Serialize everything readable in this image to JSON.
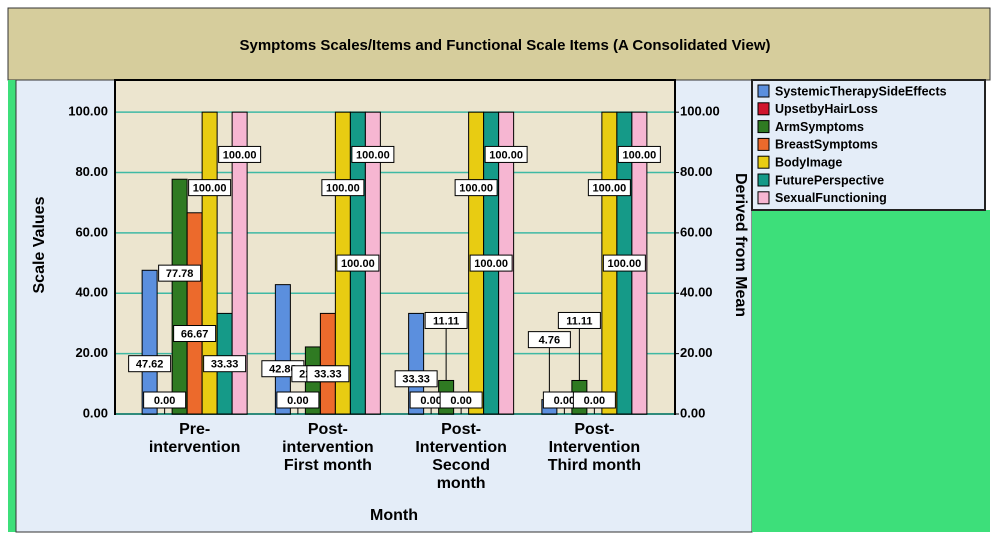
{
  "chart_data": {
    "type": "bar",
    "title": "Symptoms Scales/Items and Functional Scale Items (A Consolidated View)",
    "x_label": "Month",
    "y_label": "Scale Values",
    "y2_label": "Derived from Mean",
    "categories": [
      "Pre-\nintervention",
      "Post-\nintervention\nFirst month",
      "Post-\nIntervention\nSecond\nmonth",
      "Post-\nIntervention\nThird month"
    ],
    "series": [
      {
        "name": "SystemicTherapySideEffects",
        "color": "#5b8fde",
        "values": [
          47.62,
          42.86,
          33.33,
          4.76
        ],
        "value_labels": [
          "47.62",
          "42.86",
          "33.33",
          "4.76"
        ]
      },
      {
        "name": "UpsetbyHairLoss",
        "color": "#d0152d",
        "values": [
          0,
          0,
          0,
          0
        ],
        "value_labels": [
          "0.00",
          "0.00",
          "0.00",
          "0.00"
        ]
      },
      {
        "name": "ArmSymptoms",
        "color": "#2f7a22",
        "values": [
          77.78,
          22.22,
          11.11,
          11.11
        ],
        "value_labels": [
          "77.78",
          "22.22",
          "11.11",
          "11.11"
        ]
      },
      {
        "name": "BreastSymptoms",
        "color": "#ec6a2c",
        "values": [
          66.67,
          33.33,
          0,
          0
        ],
        "value_labels": [
          "66.67",
          "33.33",
          "0.00",
          "0.00"
        ]
      },
      {
        "name": "BodyImage",
        "color": "#e8cc12",
        "values": [
          100,
          100,
          100,
          100
        ],
        "value_labels": [
          "100.00",
          "100.00",
          "100.00",
          "100.00"
        ]
      },
      {
        "name": "FuturePerspective",
        "color": "#159a88",
        "values": [
          33.33,
          100,
          100,
          100
        ],
        "value_labels": [
          "33.33",
          "100.00",
          "100.00",
          "100.00"
        ]
      },
      {
        "name": "SexualFunctioning",
        "color": "#f6b6d2",
        "values": [
          100,
          100,
          100,
          100
        ],
        "value_labels": [
          "100.00",
          "100.00",
          "100.00",
          "100.00"
        ]
      }
    ],
    "ylim": [
      0,
      110
    ],
    "yticks": [
      {
        "value": 0,
        "label": "0.00"
      },
      {
        "value": 20,
        "label": "20.00"
      },
      {
        "value": 40,
        "label": "40.00"
      },
      {
        "value": 60,
        "label": "60.00"
      },
      {
        "value": 80,
        "label": "80.00"
      },
      {
        "value": 100,
        "label": "100.00"
      }
    ],
    "y2lim": [
      0,
      110
    ],
    "y2ticks": [
      {
        "value": 0,
        "label": "0.00"
      },
      {
        "value": 20,
        "label": "20.00"
      },
      {
        "value": 40,
        "label": "40.00"
      },
      {
        "value": 60,
        "label": "60.00"
      },
      {
        "value": 80,
        "label": "80.00"
      },
      {
        "value": 100,
        "label": "100.00"
      }
    ],
    "grid": true
  }
}
